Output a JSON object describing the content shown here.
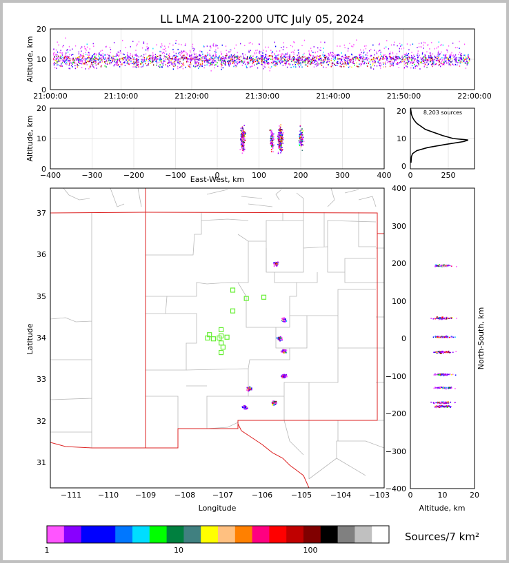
{
  "title": "LL LMA 2100-2200 UTC July 05, 2024",
  "time_panel": {
    "ylabel": "Altitude, km",
    "yticks": [
      "0",
      "10",
      "20"
    ],
    "xticks": [
      "21:00:00",
      "21:10:00",
      "21:20:00",
      "21:30:00",
      "21:40:00",
      "21:50:00",
      "22:00:00"
    ]
  },
  "ew_panel": {
    "ylabel": "Altitude, km",
    "xlabel": "East-West, km",
    "yticks": [
      "0",
      "10",
      "20"
    ],
    "xticks": [
      "−400",
      "−300",
      "−200",
      "−100",
      "0",
      "100",
      "200",
      "300",
      "400"
    ]
  },
  "hist_panel": {
    "annotation": "8,203 sources",
    "yticks": [
      "0",
      "10",
      "20"
    ],
    "xticks": [
      "0",
      "250"
    ]
  },
  "map_panel": {
    "ylabel": "Latitude",
    "xlabel": "Longitude",
    "yticks": [
      "31",
      "32",
      "33",
      "34",
      "35",
      "36",
      "37"
    ],
    "xticks": [
      "−111",
      "−110",
      "−109",
      "−108",
      "−107",
      "−106",
      "−105",
      "−104",
      "−103"
    ]
  },
  "ns_panel": {
    "ylabel": "North-South, km",
    "xlabel": "Altitude, km",
    "yticks": [
      "−400",
      "−300",
      "−200",
      "−100",
      "0",
      "100",
      "200",
      "300",
      "400"
    ],
    "xticks": [
      "0",
      "10",
      "20"
    ]
  },
  "colorbar": {
    "label": "Sources/7 km²",
    "ticks": [
      "1",
      "10",
      "100"
    ],
    "colors": [
      "#ff55ff",
      "#8800ff",
      "#0000ff",
      "#0000ff",
      "#0077ff",
      "#00ddff",
      "#00ff00",
      "#00803f",
      "#408080",
      "#ffff00",
      "#ffc080",
      "#ff8000",
      "#ff0080",
      "#ff0000",
      "#c00000",
      "#800000",
      "#000000",
      "#808080",
      "#c0c0c0",
      "#ffffff"
    ]
  },
  "chart_data": {
    "type": "scatter",
    "title": "LL LMA 2100-2200 UTC July 05, 2024",
    "total_sources": 8203,
    "time_range": [
      "21:00:00",
      "22:00:00"
    ],
    "altitude_range_km": [
      0,
      20
    ],
    "ew_range_km": [
      -400,
      400
    ],
    "ns_range_km": [
      -400,
      400
    ],
    "lon_range": [
      -111.5,
      -102.9
    ],
    "lat_range": [
      30.4,
      37.6
    ],
    "altitude_histogram": {
      "altitude_km": [
        2,
        4,
        5,
        6,
        7,
        8,
        9,
        9.5,
        10,
        11,
        12,
        13,
        14,
        15,
        16,
        17,
        18,
        20
      ],
      "count": [
        3,
        5,
        10,
        30,
        80,
        160,
        250,
        270,
        200,
        150,
        110,
        70,
        50,
        30,
        18,
        10,
        5,
        1
      ]
    },
    "storm_cells": [
      {
        "lon": -105.7,
        "lat": 35.8,
        "ew_km": 200,
        "ns_km": 195
      },
      {
        "lon": -105.5,
        "lat": 34.45,
        "ew_km": 150,
        "ns_km": 55
      },
      {
        "lon": -105.6,
        "lat": 34.0,
        "ew_km": 150,
        "ns_km": 5
      },
      {
        "lon": -105.5,
        "lat": 33.7,
        "ew_km": 150,
        "ns_km": -35
      },
      {
        "lon": -105.5,
        "lat": 33.1,
        "ew_km": 150,
        "ns_km": -95
      },
      {
        "lon": -106.4,
        "lat": 32.8,
        "ew_km": 60,
        "ns_km": -130
      },
      {
        "lon": -106.5,
        "lat": 32.35,
        "ew_km": 60,
        "ns_km": -180
      },
      {
        "lon": -105.75,
        "lat": 32.45,
        "ew_km": 130,
        "ns_km": -170
      }
    ],
    "stations": [
      {
        "lon": -106.8,
        "lat": 35.15
      },
      {
        "lon": -106.45,
        "lat": 34.95
      },
      {
        "lon": -106.0,
        "lat": 34.98
      },
      {
        "lon": -106.8,
        "lat": 34.65
      },
      {
        "lon": -107.1,
        "lat": 34.2
      },
      {
        "lon": -107.1,
        "lat": 34.05
      },
      {
        "lon": -107.4,
        "lat": 34.08
      },
      {
        "lon": -107.45,
        "lat": 34.0
      },
      {
        "lon": -107.3,
        "lat": 33.98
      },
      {
        "lon": -107.15,
        "lat": 34.0
      },
      {
        "lon": -106.95,
        "lat": 34.02
      },
      {
        "lon": -107.1,
        "lat": 33.88
      },
      {
        "lon": -107.05,
        "lat": 33.78
      },
      {
        "lon": -107.1,
        "lat": 33.65
      }
    ]
  }
}
